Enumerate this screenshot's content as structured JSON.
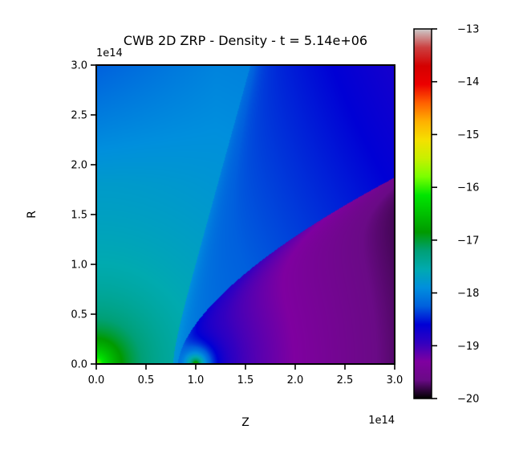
{
  "chart_data": {
    "type": "heatmap",
    "title": "CWB 2D ZRP - Density - t = 5.14e+06",
    "xlabel": "Z",
    "ylabel": "R",
    "x_offset_label": "1e14",
    "y_offset_label": "1e14",
    "xlim": [
      0.0,
      3.0
    ],
    "ylim": [
      0.0,
      3.0
    ],
    "x_ticks": [
      "0.0",
      "0.5",
      "1.0",
      "1.5",
      "2.0",
      "2.5",
      "3.0"
    ],
    "y_ticks": [
      "0.0",
      "0.5",
      "1.0",
      "1.5",
      "2.0",
      "2.5",
      "3.0"
    ],
    "colorbar": {
      "range": [
        -20,
        -13
      ],
      "ticks": [
        "−20",
        "−19",
        "−18",
        "−17",
        "−16",
        "−15",
        "−14",
        "−13"
      ]
    },
    "colormap": "nipy_spectral",
    "features": {
      "star1_z": 0.0,
      "star2_z": 1.0,
      "shock_apex_z": 0.72,
      "shock_top_z": 1.55,
      "inner_shock_end_r": 1.87
    }
  }
}
